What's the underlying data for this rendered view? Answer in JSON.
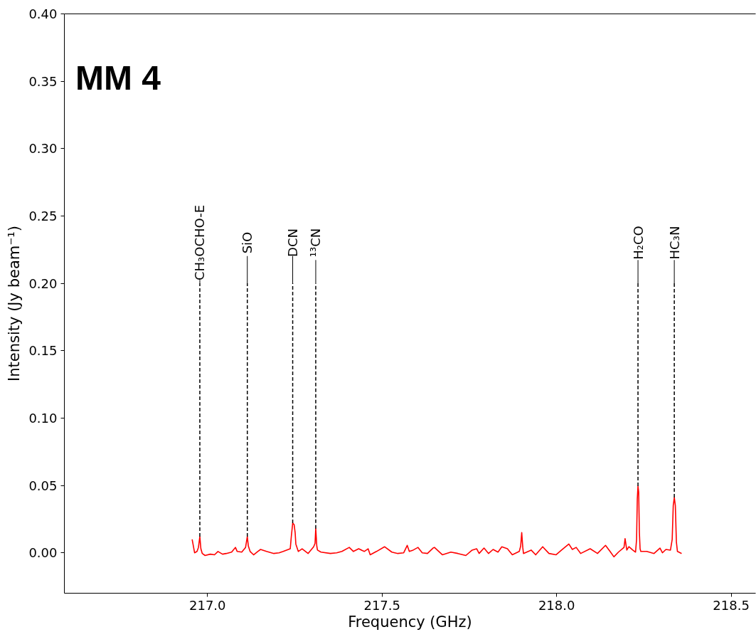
{
  "chart_data": {
    "type": "line",
    "title": "MM 4",
    "xlabel": "Frequency (GHz)",
    "ylabel": "Intensity (Jy beam⁻¹)",
    "xlim": [
      216.59,
      218.57
    ],
    "ylim": [
      -0.03,
      0.4
    ],
    "xticks": [
      {
        "value": 217,
        "label": "217.0"
      },
      {
        "value": 217.5,
        "label": "217.5"
      },
      {
        "value": 218,
        "label": "218.0"
      },
      {
        "value": 218.5,
        "label": "218.5"
      }
    ],
    "yticks": [
      {
        "value": 0,
        "label": "0.00"
      },
      {
        "value": 0.05,
        "label": "0.05"
      },
      {
        "value": 0.1,
        "label": "0.10"
      },
      {
        "value": 0.15,
        "label": "0.15"
      },
      {
        "value": 0.2,
        "label": "0.20"
      },
      {
        "value": 0.25,
        "label": "0.25"
      },
      {
        "value": 0.3,
        "label": "0.30"
      },
      {
        "value": 0.35,
        "label": "0.35"
      },
      {
        "value": 0.4,
        "label": "0.40"
      }
    ],
    "grid": false,
    "color": "#ff0000",
    "x": [
      216.956,
      216.963,
      216.97,
      216.974,
      216.978,
      216.981,
      216.985,
      216.993,
      217.008,
      217.02,
      217.03,
      217.043,
      217.054,
      217.069,
      217.08,
      217.085,
      217.098,
      217.109,
      217.114,
      217.117,
      217.122,
      217.132,
      217.144,
      217.152,
      217.169,
      217.19,
      217.205,
      217.217,
      217.237,
      217.24,
      217.244,
      217.248,
      217.251,
      217.253,
      217.26,
      217.271,
      217.288,
      217.304,
      217.308,
      217.31,
      217.313,
      217.315,
      217.325,
      217.352,
      217.37,
      217.385,
      217.406,
      217.418,
      217.433,
      217.449,
      217.46,
      217.466,
      217.484,
      217.507,
      217.528,
      217.545,
      217.562,
      217.572,
      217.578,
      217.589,
      217.603,
      217.615,
      217.63,
      217.646,
      217.65,
      217.673,
      217.697,
      217.717,
      217.74,
      217.758,
      217.771,
      217.778,
      217.792,
      217.805,
      217.818,
      217.832,
      217.843,
      217.859,
      217.873,
      217.893,
      217.897,
      217.9,
      217.903,
      217.905,
      217.927,
      217.94,
      217.96,
      217.978,
      217.998,
      218.014,
      218.035,
      218.045,
      218.056,
      218.069,
      218.096,
      218.117,
      218.14,
      218.153,
      218.164,
      218.177,
      218.193,
      218.196,
      218.201,
      218.207,
      218.218,
      218.226,
      218.229,
      218.231,
      218.233,
      218.235,
      218.237,
      218.239,
      218.241,
      218.258,
      218.279,
      218.296,
      218.303,
      218.313,
      218.326,
      218.331,
      218.334,
      218.337,
      218.34,
      218.343,
      218.346,
      218.358
    ],
    "values": [
      0.01,
      0.0,
      0.001,
      0.004,
      0.012,
      0.003,
      -0.0005,
      -0.002,
      -0.001,
      -0.0015,
      0.001,
      -0.001,
      -0.0005,
      0.0005,
      0.004,
      0.001,
      0.0005,
      0.004,
      0.012,
      0.005,
      0.001,
      -0.0015,
      0.001,
      0.0025,
      0.001,
      -0.0005,
      0.0,
      0.001,
      0.003,
      0.012,
      0.022,
      0.021,
      0.015,
      0.0065,
      0.001,
      0.003,
      -0.0005,
      0.0045,
      0.007,
      0.018,
      0.005,
      0.002,
      0.0005,
      -0.0005,
      0.0,
      0.001,
      0.004,
      0.001,
      0.003,
      0.001,
      0.003,
      -0.0015,
      0.001,
      0.0045,
      0.0005,
      -0.0005,
      0.0,
      0.0055,
      0.001,
      0.002,
      0.004,
      0.0,
      -0.0005,
      0.0035,
      0.004,
      -0.0015,
      0.0005,
      -0.0005,
      -0.002,
      0.002,
      0.003,
      -0.0005,
      0.0035,
      -0.0005,
      0.0025,
      0.0005,
      0.0045,
      0.003,
      -0.0015,
      0.001,
      0.005,
      0.015,
      0.004,
      -0.0005,
      0.002,
      -0.0015,
      0.0045,
      -0.0005,
      -0.0015,
      0.002,
      0.0065,
      0.0025,
      0.004,
      -0.0005,
      0.003,
      -0.0005,
      0.0055,
      0.001,
      -0.003,
      0.0005,
      0.004,
      0.0105,
      0.002,
      0.0045,
      0.002,
      0.0005,
      0.01,
      0.04,
      0.0495,
      0.045,
      0.015,
      0.003,
      0.001,
      0.001,
      -0.0005,
      0.0035,
      0.0,
      0.0025,
      0.002,
      0.01,
      0.035,
      0.041,
      0.035,
      0.008,
      0.001,
      -0.0005
    ],
    "ref_lines": [
      {
        "axis": "x",
        "value": 216.978,
        "label": "CH₃OCHO-E",
        "line_style": "dashed",
        "color": "#000000"
      },
      {
        "axis": "x",
        "value": 217.114,
        "label": "SiO",
        "line_style": "dashed",
        "color": "#000000"
      },
      {
        "axis": "x",
        "value": 217.244,
        "label": "DCN",
        "line_style": "dashed",
        "color": "#000000"
      },
      {
        "axis": "x",
        "value": 217.31,
        "label": "¹³CN",
        "line_style": "dashed",
        "color": "#000000"
      },
      {
        "axis": "x",
        "value": 218.233,
        "label": "H₂CO",
        "line_style": "dashed",
        "color": "#000000"
      },
      {
        "axis": "x",
        "value": 218.337,
        "label": "HC₃N",
        "line_style": "dashed",
        "color": "#000000"
      }
    ]
  }
}
